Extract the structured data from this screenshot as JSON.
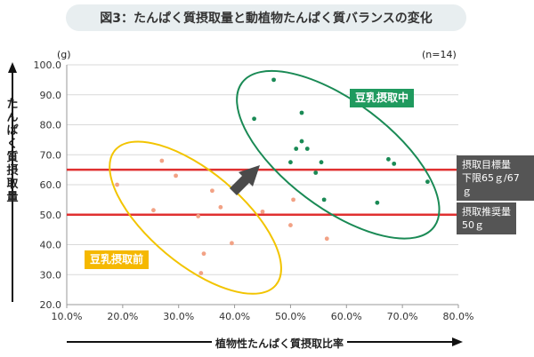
{
  "title": "図3：たんぱく質摂取量と動植物たんぱく質バランスの変化",
  "ylabel": "たんぱく質摂取量",
  "xlabel": "植物性たんぱく質摂取比率",
  "unit": "(g)",
  "n_label": "(n=14)",
  "labels": {
    "before": "豆乳摂取前",
    "during": "豆乳摂取中",
    "upper_line_1": "摂取目標量",
    "upper_line_2": "下限65ｇ/67ｇ",
    "lower_line_1": "摂取推奨量",
    "lower_line_2": "50ｇ"
  },
  "colors": {
    "before": "#f2a285",
    "during": "#1a8a55",
    "before_ellipse": "#f2c400",
    "during_ellipse": "#1a8a55",
    "ref_line": "#e03030",
    "before_label_bg": "#f5b800",
    "during_label_bg": "#1f9a5e",
    "line_label_bg": "#555555"
  },
  "chart_data": {
    "type": "scatter",
    "xlabel": "植物性たんぱく質摂取比率",
    "ylabel": "たんぱく質摂取量",
    "xlim": [
      0.1,
      0.8
    ],
    "ylim": [
      20,
      100
    ],
    "xticks": [
      "10.0%",
      "20.0%",
      "30.0%",
      "40.0%",
      "50.0%",
      "60.0%",
      "70.0%",
      "80.0%"
    ],
    "yticks": [
      "20.0",
      "30.0",
      "40.0",
      "50.0",
      "60.0",
      "70.0",
      "80.0",
      "90.0",
      "100.0"
    ],
    "reference_lines": [
      65,
      50
    ],
    "series": [
      {
        "name": "豆乳摂取前",
        "points": [
          [
            0.19,
            60
          ],
          [
            0.255,
            51.5
          ],
          [
            0.27,
            68
          ],
          [
            0.295,
            63
          ],
          [
            0.335,
            49.5
          ],
          [
            0.36,
            58
          ],
          [
            0.375,
            52.5
          ],
          [
            0.34,
            30.5
          ],
          [
            0.345,
            37
          ],
          [
            0.395,
            40.5
          ],
          [
            0.45,
            51
          ],
          [
            0.5,
            46.5
          ],
          [
            0.565,
            42
          ],
          [
            0.505,
            55
          ]
        ]
      },
      {
        "name": "豆乳摂取中",
        "points": [
          [
            0.47,
            95
          ],
          [
            0.435,
            82
          ],
          [
            0.52,
            84
          ],
          [
            0.52,
            74.5
          ],
          [
            0.51,
            72
          ],
          [
            0.53,
            72
          ],
          [
            0.5,
            67.5
          ],
          [
            0.555,
            67.5
          ],
          [
            0.545,
            64
          ],
          [
            0.56,
            55
          ],
          [
            0.655,
            54
          ],
          [
            0.675,
            68.5
          ],
          [
            0.685,
            67
          ],
          [
            0.745,
            61
          ]
        ]
      }
    ]
  }
}
